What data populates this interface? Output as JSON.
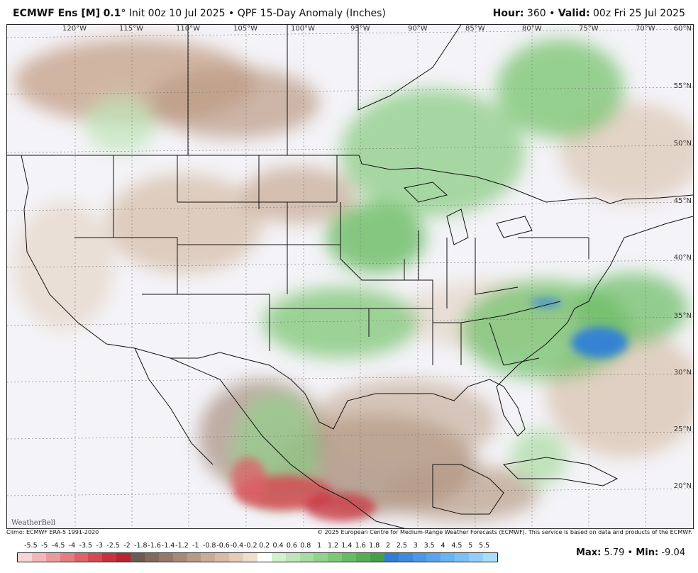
{
  "header": {
    "model": "ECMWF Ens [M]",
    "res": "0.1",
    "deg": "°",
    "init": "Init 00z 10 Jul 2025",
    "bullet": "•",
    "product": "QPF 15-Day Anomaly (Inches)",
    "hour_label": "Hour:",
    "hour": "360",
    "valid_label": "Valid:",
    "valid": "00z Fri 25 Jul 2025"
  },
  "map": {
    "lon_labels": [
      "120°W",
      "115°W",
      "110°W",
      "105°W",
      "100°W",
      "95°W",
      "90°W",
      "85°W",
      "80°W",
      "75°W",
      "70°W"
    ],
    "lat_labels": [
      "60°N",
      "55°N",
      "50°N",
      "45°N",
      "40°N",
      "35°N",
      "30°N",
      "25°N",
      "20°N"
    ],
    "logo": "WeatherBell"
  },
  "footer": {
    "climo": "Climo: ECMWF ERA-5 1991-2020",
    "copyright": "© 2025 European Centre for Medium-Range Weather Forecasts (ECMWF). This service is based on data and products of the ECMWF."
  },
  "legend": {
    "ticks": [
      "-5.5",
      "-5",
      "-4.5",
      "-4",
      "-3.5",
      "-3",
      "-2.5",
      "-2",
      "-1.8",
      "-1.6",
      "-1.4",
      "-1.2",
      "-1",
      "-0.8",
      "-0.6",
      "-0.4",
      "-0.2",
      "0.2",
      "0.4",
      "0.6",
      "0.8",
      "1",
      "1.2",
      "1.4",
      "1.6",
      "1.8",
      "2",
      "2.5",
      "3",
      "3.5",
      "4",
      "4.5",
      "5",
      "5.5"
    ],
    "colors": [
      "#f7d4d6",
      "#f2b7ba",
      "#ec9a9e",
      "#e57e83",
      "#dd6369",
      "#d44a52",
      "#c8323c",
      "#b72530",
      "#6e5a50",
      "#7f6a5d",
      "#92796b",
      "#a58a7a",
      "#b79b89",
      "#c8ab98",
      "#d6bca8",
      "#e3cdb9",
      "#eedfd0",
      "#ffffff",
      "#d5efd0",
      "#bfe6b8",
      "#a9dca1",
      "#93d28b",
      "#7ec776",
      "#69bc63",
      "#55ae54",
      "#439f48",
      "#2f7fd8",
      "#3c8be0",
      "#4a98e8",
      "#58a5ee",
      "#68b3f2",
      "#7bc1f5",
      "#90cff8",
      "#a8def9"
    ]
  },
  "stats": {
    "max_label": "Max:",
    "max": "5.79",
    "min_label": "Min:",
    "min": "-9.04"
  }
}
